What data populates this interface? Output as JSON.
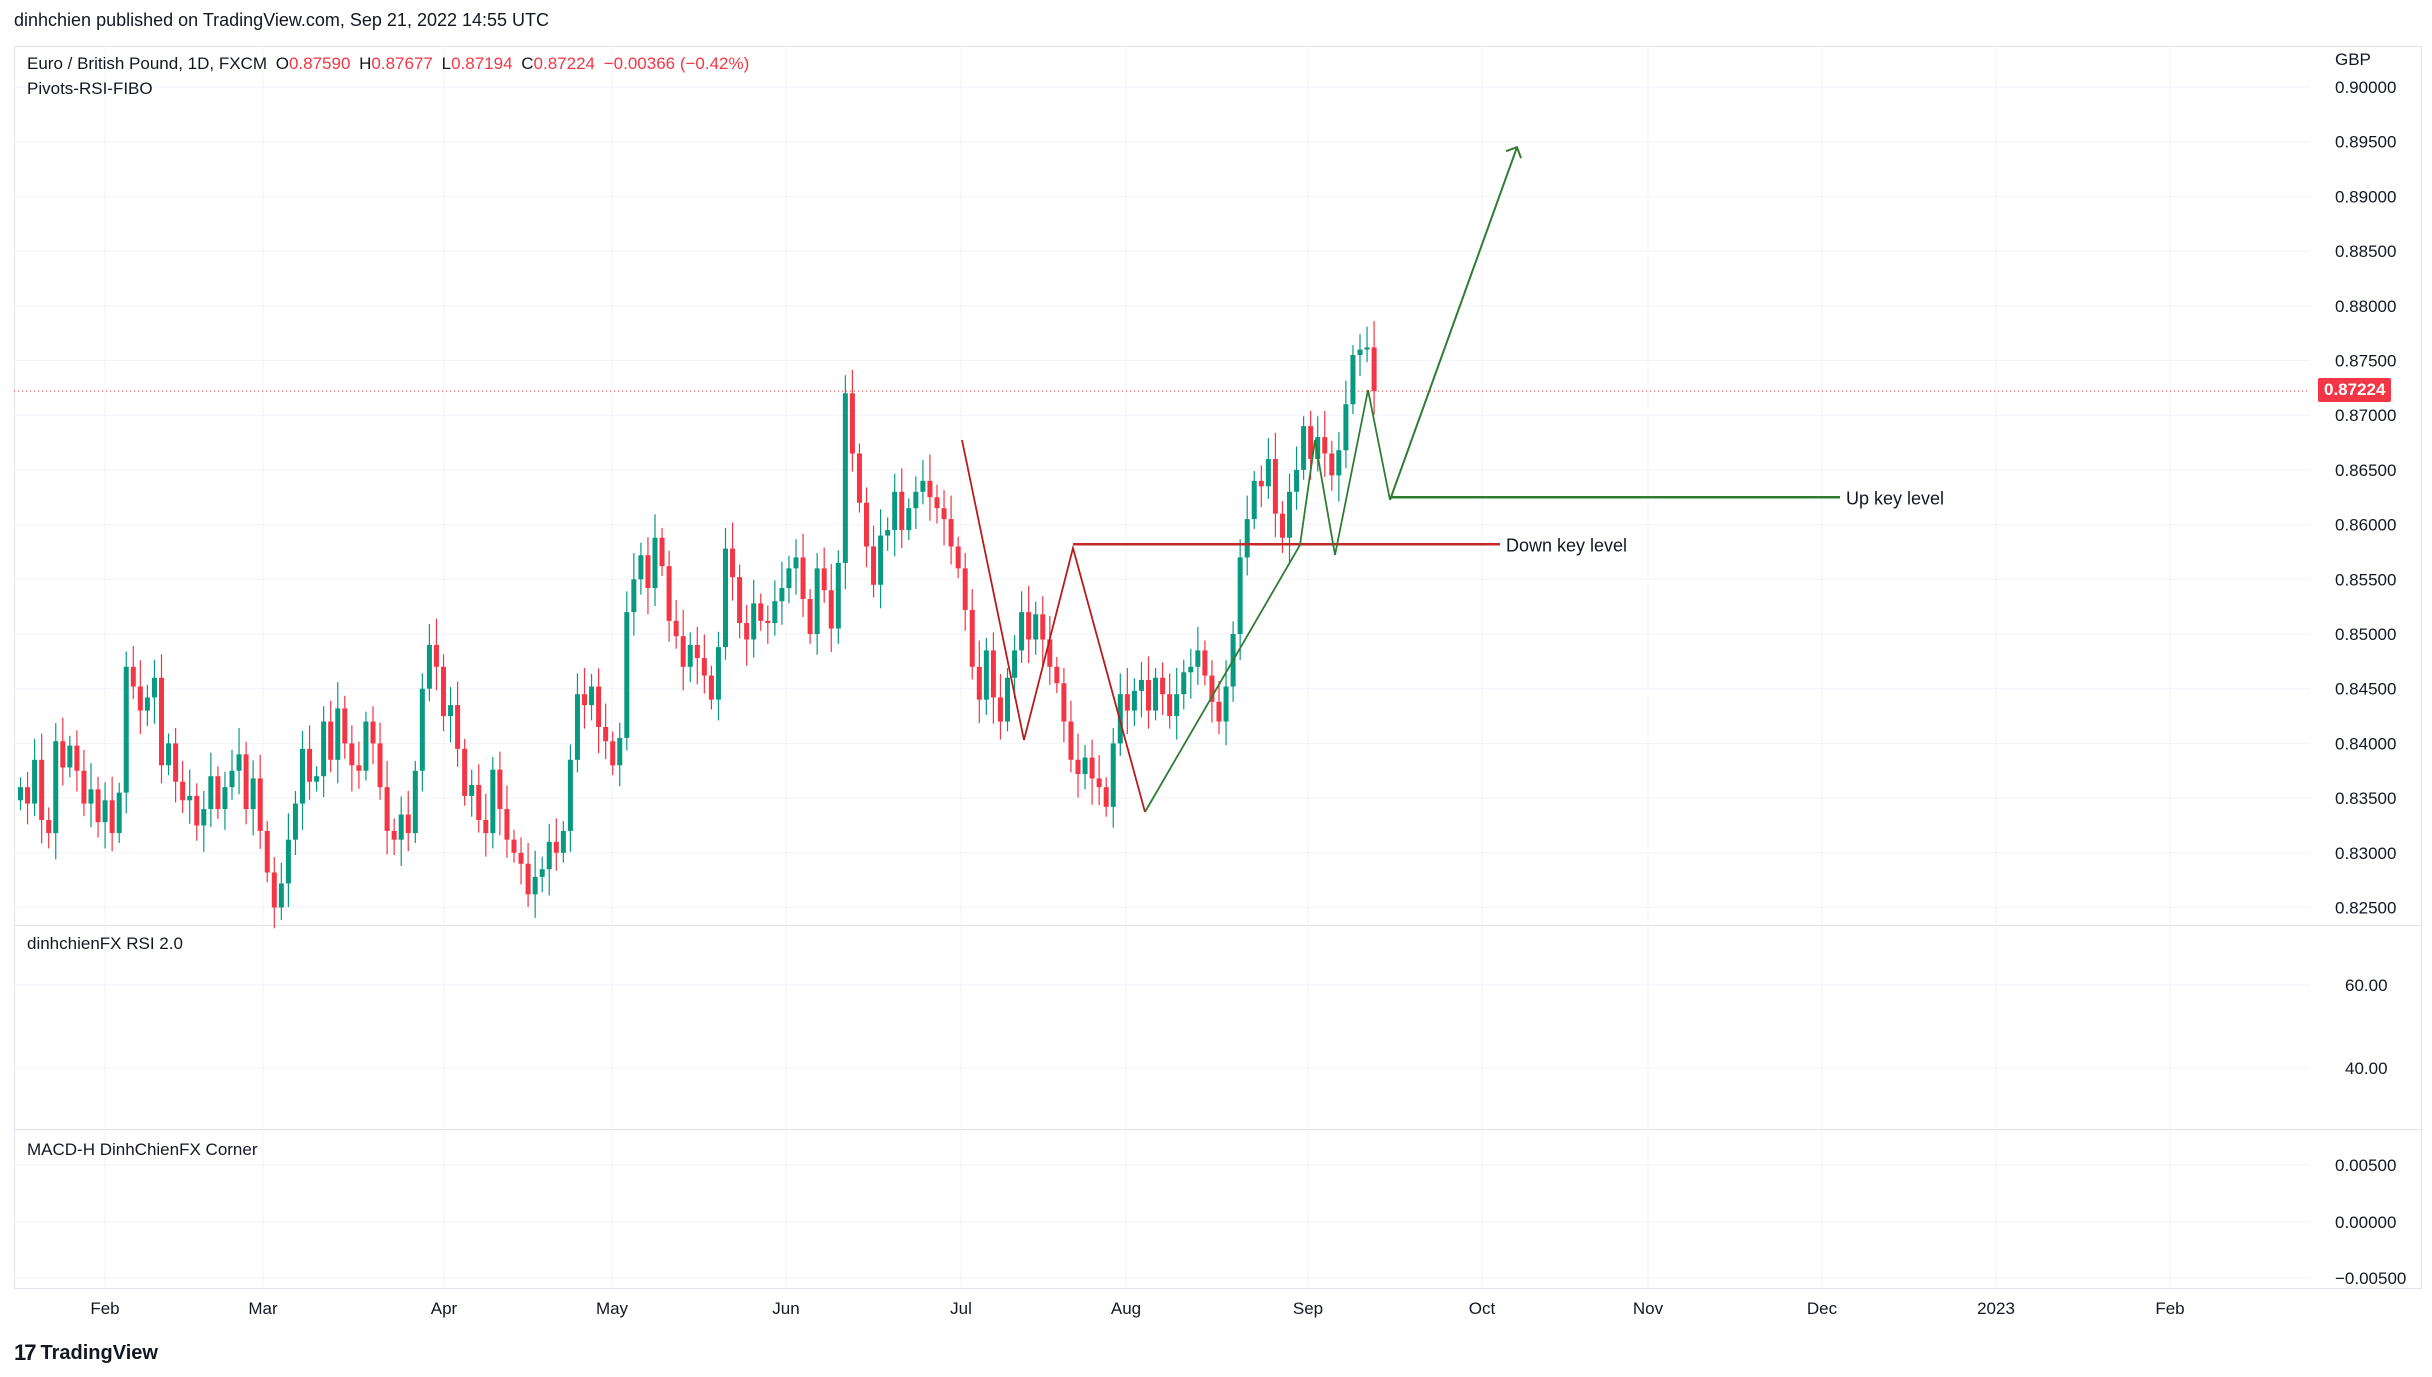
{
  "header": {
    "published_line": "dinhchien published on TradingView.com, Sep 21, 2022 14:55 UTC"
  },
  "main": {
    "symbol_line_prefix": "Euro / British Pound, 1D, FXCM",
    "ohlc": {
      "o_label": "O",
      "o": "0.87590",
      "h_label": "H",
      "h": "0.87677",
      "l_label": "L",
      "l": "0.87194",
      "c_label": "C",
      "c": "0.87224",
      "change": "−0.00366 (−0.42%)"
    },
    "indicator": "Pivots-RSI-FIBO",
    "currency": "GBP",
    "last_price_label": "0.87224"
  },
  "rsi_panel": {
    "title": "dinhchienFX RSI 2.0"
  },
  "macd_panel": {
    "title": "MACD-H DinhChienFX Corner"
  },
  "footer": {
    "brand": "TradingView"
  },
  "colors": {
    "up": "#089981",
    "down": "#f23645",
    "grid": "#f0f3fa",
    "up_key": "#2e7d32",
    "down_key": "#c62828",
    "border": "#e0e3eb"
  },
  "chart_data": [
    {
      "type": "candlestick",
      "title": "Euro / British Pound, 1D, FXCM",
      "ylim": [
        0.8225,
        0.902
      ],
      "y_ticks": [
        "0.90000",
        "0.89500",
        "0.89000",
        "0.88500",
        "0.88000",
        "0.87500",
        "0.87000",
        "0.86500",
        "0.86000",
        "0.85500",
        "0.85000",
        "0.84500",
        "0.84000",
        "0.83500",
        "0.83000",
        "0.82500"
      ],
      "x_ticks": [
        "Feb",
        "Mar",
        "Apr",
        "May",
        "Jun",
        "Jul",
        "Aug",
        "Sep",
        "Oct",
        "Nov",
        "Dec",
        "2023",
        "Feb"
      ],
      "closes": [
        0.836,
        0.8345,
        0.8385,
        0.833,
        0.8318,
        0.8402,
        0.8378,
        0.8398,
        0.8375,
        0.8345,
        0.8358,
        0.8328,
        0.8348,
        0.8318,
        0.8355,
        0.847,
        0.8452,
        0.843,
        0.8442,
        0.846,
        0.838,
        0.84,
        0.8365,
        0.8348,
        0.8352,
        0.8325,
        0.834,
        0.837,
        0.834,
        0.836,
        0.8375,
        0.839,
        0.834,
        0.8368,
        0.832,
        0.8282,
        0.825,
        0.8272,
        0.8312,
        0.8345,
        0.8395,
        0.8365,
        0.837,
        0.842,
        0.8385,
        0.8432,
        0.84,
        0.838,
        0.8375,
        0.842,
        0.84,
        0.836,
        0.832,
        0.8312,
        0.8335,
        0.8318,
        0.8375,
        0.845,
        0.849,
        0.847,
        0.8425,
        0.8435,
        0.8395,
        0.8352,
        0.8362,
        0.833,
        0.8318,
        0.8376,
        0.834,
        0.8312,
        0.83,
        0.829,
        0.8262,
        0.8278,
        0.8285,
        0.831,
        0.83,
        0.832,
        0.8385,
        0.8445,
        0.8435,
        0.8452,
        0.8415,
        0.8402,
        0.838,
        0.8405,
        0.852,
        0.855,
        0.8572,
        0.8542,
        0.8588,
        0.8562,
        0.8512,
        0.8498,
        0.847,
        0.849,
        0.8478,
        0.8462,
        0.844,
        0.8488,
        0.8578,
        0.8552,
        0.851,
        0.8495,
        0.8528,
        0.8512,
        0.851,
        0.853,
        0.8542,
        0.856,
        0.857,
        0.8532,
        0.85,
        0.856,
        0.854,
        0.8505,
        0.8565,
        0.872,
        0.8665,
        0.862,
        0.858,
        0.8545,
        0.859,
        0.8595,
        0.863,
        0.8595,
        0.8615,
        0.863,
        0.864,
        0.8625,
        0.8615,
        0.8605,
        0.858,
        0.856,
        0.8522,
        0.847,
        0.844,
        0.8485,
        0.8442,
        0.842,
        0.846,
        0.8485,
        0.852,
        0.8495,
        0.8518,
        0.8495,
        0.847,
        0.8455,
        0.842,
        0.8385,
        0.8372,
        0.8387,
        0.8368,
        0.836,
        0.8342,
        0.84,
        0.8445,
        0.843,
        0.8448,
        0.8458,
        0.843,
        0.846,
        0.8445,
        0.8425,
        0.8445,
        0.8465,
        0.847,
        0.8485,
        0.8462,
        0.8438,
        0.842,
        0.8452,
        0.85,
        0.857,
        0.8605,
        0.864,
        0.8635,
        0.866,
        0.861,
        0.8588,
        0.863,
        0.865,
        0.869,
        0.866,
        0.868,
        0.8665,
        0.8645,
        0.8668,
        0.871,
        0.8755,
        0.876,
        0.8762,
        0.8722
      ]
    },
    {
      "type": "line",
      "title": "dinhchienFX RSI 2.0",
      "y_ticks": [
        "60.00",
        "40.00"
      ],
      "values": []
    },
    {
      "type": "bar",
      "title": "MACD-H DinhChienFX Corner",
      "y_ticks": [
        "0.00500",
        "0.00000",
        "−0.00500"
      ],
      "values": []
    }
  ],
  "annotations": {
    "up_key_level": {
      "label": "Up key level",
      "price": 0.8625
    },
    "down_key_level": {
      "label": "Down key level",
      "price": 0.8582
    },
    "projection_target": 0.8945
  }
}
